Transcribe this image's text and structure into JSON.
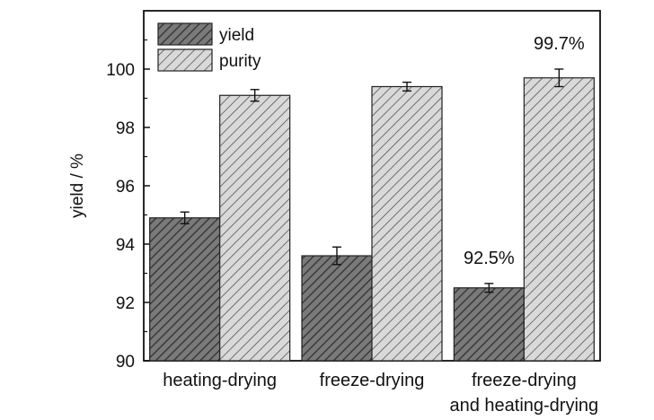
{
  "chart_data": {
    "type": "bar",
    "title": "",
    "xlabel": "",
    "ylabel": "yield / %",
    "ylim": [
      90,
      102
    ],
    "yticks": [
      90,
      92,
      94,
      96,
      98,
      100
    ],
    "categories": [
      [
        "heating-drying"
      ],
      [
        "freeze-drying"
      ],
      [
        "freeze-drying",
        "and heating-drying"
      ]
    ],
    "series": [
      {
        "name": "yield",
        "values": [
          94.9,
          93.6,
          92.5
        ],
        "errors": [
          0.2,
          0.3,
          0.15
        ],
        "color": "#6b6b6b",
        "hatch": "dark-diagonal"
      },
      {
        "name": "purity",
        "values": [
          99.1,
          99.4,
          99.7
        ],
        "errors": [
          0.2,
          0.15,
          0.3
        ],
        "color": "#cfcfcf",
        "hatch": "light-diagonal"
      }
    ],
    "annotations": [
      {
        "text": "92.5%",
        "category": 2,
        "series": 0
      },
      {
        "text": "99.7%",
        "category": 2,
        "series": 1
      }
    ],
    "legend": {
      "position": "top-left"
    },
    "grid": false
  }
}
